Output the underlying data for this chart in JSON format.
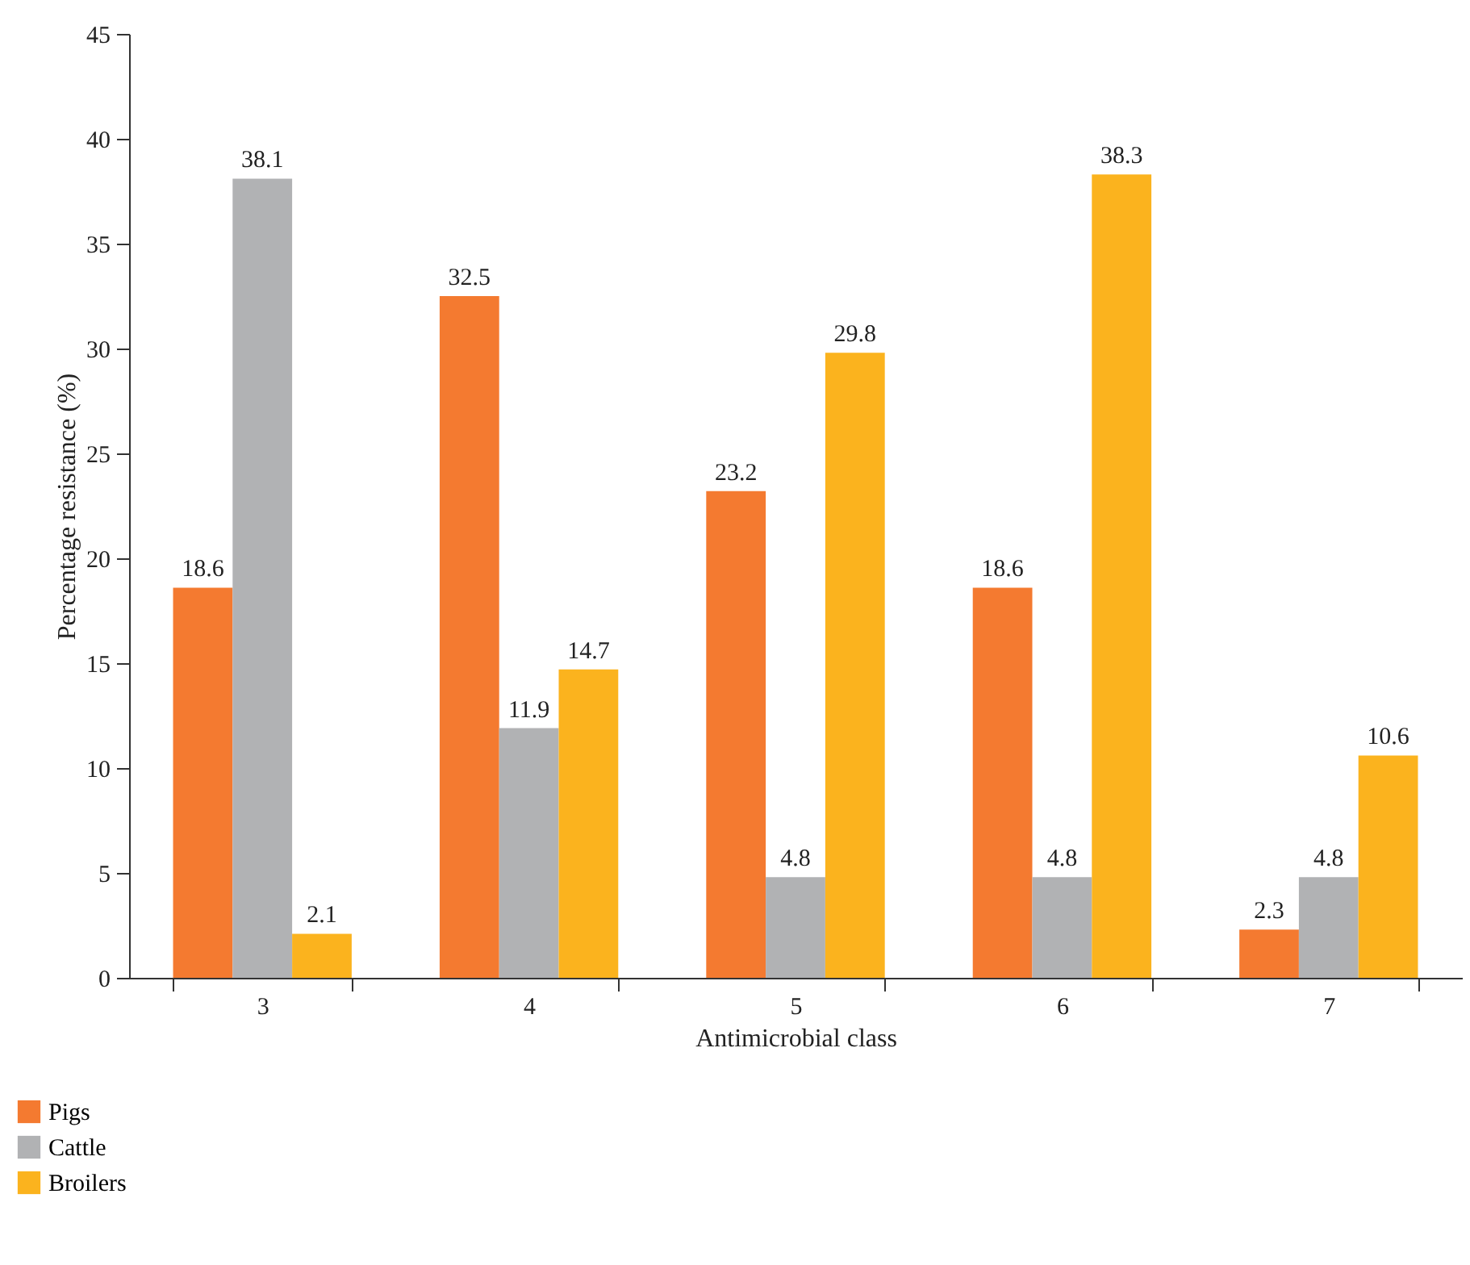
{
  "chart_data": {
    "type": "bar",
    "xlabel": "Antimicrobial class",
    "ylabel": "Percentage resistance (%)",
    "categories": [
      "3",
      "4",
      "5",
      "6",
      "7"
    ],
    "series": [
      {
        "name": "Pigs",
        "color": "#f47a30",
        "values": [
          18.6,
          32.5,
          23.2,
          18.6,
          2.3
        ]
      },
      {
        "name": "Cattle",
        "color": "#b1b2b4",
        "values": [
          38.1,
          11.9,
          4.8,
          4.8,
          4.8
        ]
      },
      {
        "name": "Broilers",
        "color": "#fbb31e",
        "values": [
          2.1,
          14.7,
          29.8,
          38.3,
          10.6
        ]
      }
    ],
    "ylim": [
      0,
      45
    ],
    "yticks": [
      0,
      5,
      10,
      15,
      20,
      25,
      30,
      35,
      40,
      45
    ],
    "grid": false,
    "legend": "bottom left",
    "data_labels": true
  }
}
